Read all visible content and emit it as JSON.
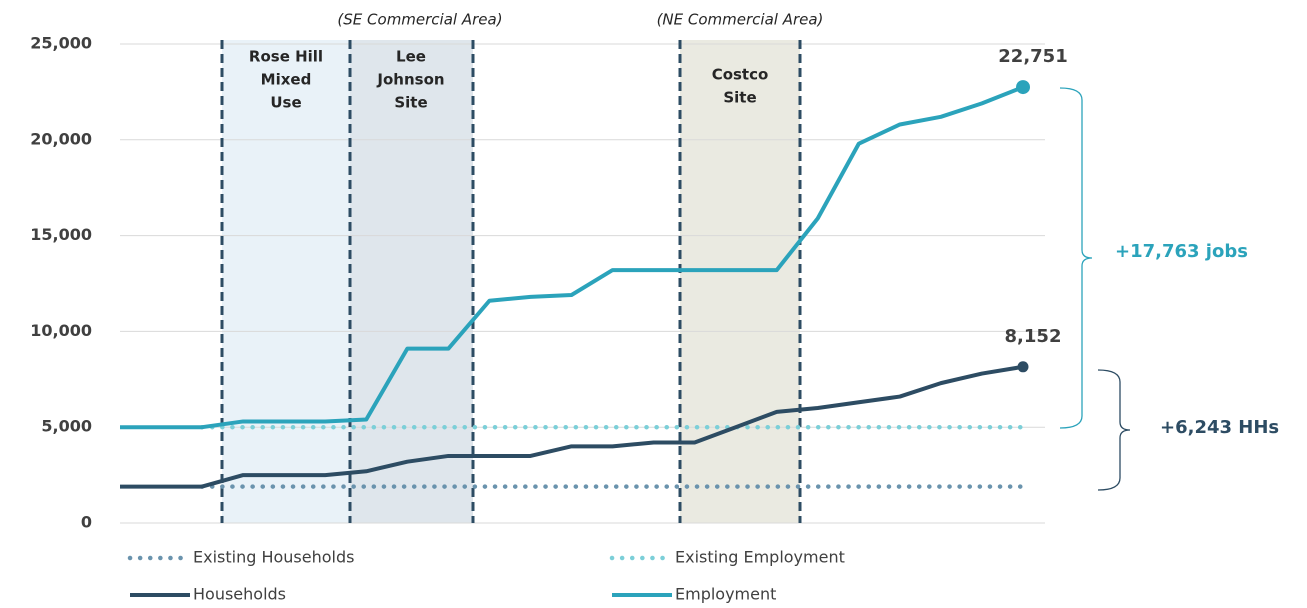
{
  "chart_data": {
    "type": "line",
    "categories": [
      null,
      null,
      null,
      null,
      null,
      null,
      null,
      null,
      null,
      null,
      null,
      null,
      null,
      null,
      null,
      null,
      null,
      null,
      null,
      null,
      null,
      null,
      null
    ],
    "ylim": [
      0,
      25000
    ],
    "yticks": [
      0,
      {
        "value": 5000,
        "label": "5,000"
      },
      {
        "value": 10000,
        "label": "10,000"
      },
      {
        "value": 15000,
        "label": "15,000"
      },
      {
        "value": 20000,
        "label": "20,000"
      },
      {
        "value": 25000,
        "label": "25,000"
      }
    ],
    "grid": true,
    "series": [
      {
        "name": "Existing Households",
        "color": "#6a93ad",
        "style": "dotted",
        "values": [
          null,
          null,
          1900,
          1900,
          1900,
          1900,
          1900,
          1900,
          1900,
          1900,
          1900,
          1900,
          1900,
          1900,
          1900,
          1900,
          1900,
          1900,
          1900,
          1900,
          1900,
          1900,
          1900
        ]
      },
      {
        "name": "Existing Employment",
        "color": "#7ccfd8",
        "style": "dotted",
        "values": [
          null,
          null,
          5000,
          5000,
          5000,
          5000,
          5000,
          5000,
          5000,
          5000,
          5000,
          5000,
          5000,
          5000,
          5000,
          5000,
          5000,
          5000,
          5000,
          5000,
          5000,
          5000,
          5000
        ]
      },
      {
        "name": "Households",
        "color": "#2d4c63",
        "style": "solid",
        "values": [
          1900,
          1900,
          1900,
          2500,
          2500,
          2500,
          2700,
          3200,
          3500,
          3500,
          3500,
          4000,
          4000,
          4200,
          4200,
          5000,
          5800,
          6000,
          6300,
          6600,
          7300,
          7800,
          8152
        ],
        "value_labels": [
          null,
          null,
          null,
          null,
          null,
          null,
          null,
          null,
          null,
          null,
          null,
          null,
          null,
          null,
          null,
          null,
          null,
          null,
          null,
          null,
          null,
          null,
          "8,152"
        ]
      },
      {
        "name": "Employment",
        "color": "#2ba3bb",
        "style": "solid",
        "values": [
          5000,
          5000,
          5000,
          5300,
          5300,
          5300,
          5400,
          9100,
          9100,
          11600,
          11800,
          11900,
          13200,
          13200,
          13200,
          13200,
          13200,
          15900,
          19800,
          20800,
          21200,
          21900,
          22751
        ],
        "value_labels": [
          null,
          null,
          null,
          null,
          null,
          null,
          null,
          null,
          null,
          null,
          null,
          null,
          null,
          null,
          null,
          null,
          null,
          null,
          null,
          null,
          null,
          null,
          "22,751"
        ]
      }
    ],
    "regions": [
      {
        "lines": [
          "Rose Hill",
          "Mixed",
          "Use"
        ]
      },
      {
        "lines": [
          "Lee",
          "Johnson",
          "Site"
        ]
      },
      {
        "lines": [
          "Costco",
          "Site"
        ]
      }
    ],
    "area_labels": [
      "(SE Commercial Area)",
      "(NE Commercial Area)"
    ],
    "annotations": [
      "+17,763 jobs",
      "+6,243 HHs"
    ]
  }
}
